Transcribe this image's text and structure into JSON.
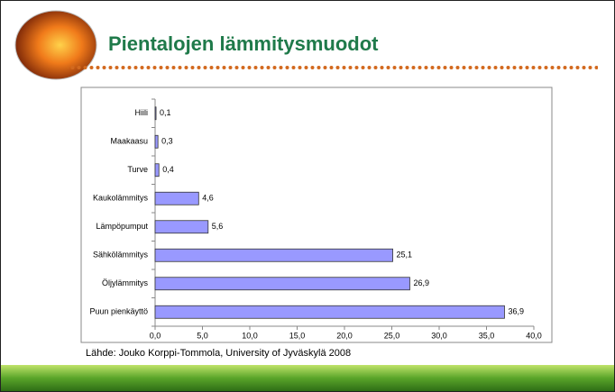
{
  "chart_data": {
    "type": "hbar",
    "title": "Pientalojen lämmitysmuodot",
    "source": "Lähde: Jouko Korppi-Tommola, University of Jyväskylä 2008",
    "categories": [
      "Hiili",
      "Maakaasu",
      "Turve",
      "Kaukolämmitys",
      "Lämpöpumput",
      "Sähkölämmitys",
      "Öljylämmitys",
      "Puun pienkäyttö"
    ],
    "values": [
      0.1,
      0.3,
      0.4,
      4.6,
      5.6,
      25.1,
      26.9,
      36.9
    ],
    "value_labels": [
      "0,1",
      "0,3",
      "0,4",
      "4,6",
      "5,6",
      "25,1",
      "26,9",
      "36,9"
    ],
    "color": "#9999ff",
    "xlim": [
      0,
      40
    ],
    "xticks": [
      {
        "value": 0,
        "label": "0,0"
      },
      {
        "value": 5,
        "label": "5,0"
      },
      {
        "value": 10,
        "label": "10,0"
      },
      {
        "value": 15,
        "label": "15,0"
      },
      {
        "value": 20,
        "label": "20,0"
      },
      {
        "value": 25,
        "label": "25,0"
      },
      {
        "value": 30,
        "label": "30,0"
      },
      {
        "value": 35,
        "label": "35,0"
      },
      {
        "value": 40,
        "label": "40,0"
      }
    ]
  }
}
